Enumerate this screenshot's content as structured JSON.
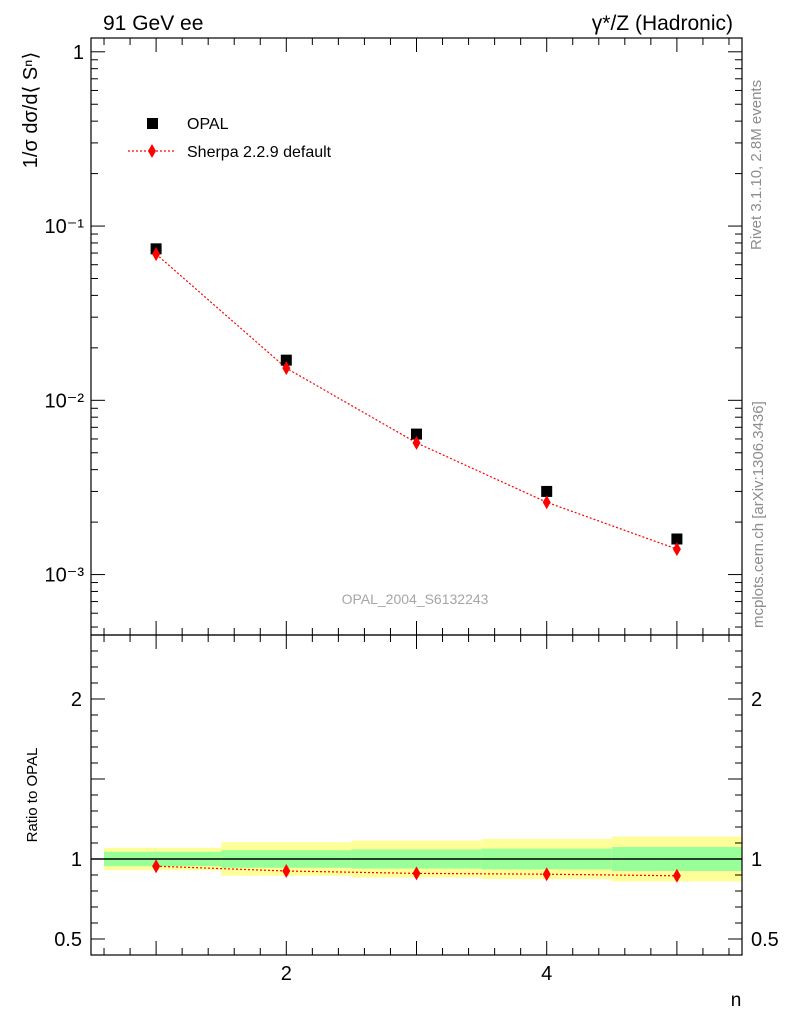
{
  "header": {
    "left": "91 GeV ee",
    "right": "γ*/Z (Hadronic)"
  },
  "side_text": {
    "rivet": "Rivet 3.1.10,  2.8M events",
    "mcplots": "mcplots.cern.ch [arXiv:1306.3436]"
  },
  "watermark": "OPAL_2004_S6132243",
  "colors": {
    "data": "#000000",
    "mc": "#ff0000",
    "band_inner": "#99ff99",
    "band_outer": "#ffff99"
  },
  "chart_data": [
    {
      "type": "scatter",
      "panel": "main",
      "ylabel": "1/σ dσ/d⟨ Sⁿ⟩",
      "yscale": "log",
      "xlim": [
        0.5,
        5.5
      ],
      "ylim": [
        0.00045,
        1.2
      ],
      "y_ticks": [
        {
          "value": 0.001,
          "label": "10⁻³"
        },
        {
          "value": 0.01,
          "label": "10⁻²"
        },
        {
          "value": 0.1,
          "label": "10⁻¹"
        },
        {
          "value": 1,
          "label": "1"
        }
      ],
      "legend_position": "top-left",
      "series": [
        {
          "name": "OPAL",
          "marker": "square",
          "x": [
            1,
            2,
            3,
            4,
            5
          ],
          "y": [
            0.074,
            0.017,
            0.0064,
            0.003,
            0.0016
          ]
        },
        {
          "name": "Sherpa 2.2.9 default",
          "marker": "diamond",
          "line": "dotted",
          "x": [
            1,
            2,
            3,
            4,
            5
          ],
          "y": [
            0.069,
            0.0153,
            0.0057,
            0.0026,
            0.0014
          ]
        }
      ]
    },
    {
      "type": "line",
      "panel": "ratio",
      "ylabel": "Ratio to OPAL",
      "xlabel": "n",
      "ylim": [
        0.4,
        2.4
      ],
      "y_ticks": [
        {
          "value": 0.5,
          "label": "0.5"
        },
        {
          "value": 1,
          "label": "1"
        },
        {
          "value": 2,
          "label": "2"
        }
      ],
      "x_ticks": [
        {
          "value": 2,
          "label": "2"
        },
        {
          "value": 4,
          "label": "4"
        }
      ],
      "bands": {
        "x_edges": [
          0.6,
          1.5,
          2.5,
          3.5,
          4.5,
          5.5
        ],
        "inner": [
          0.045,
          0.055,
          0.06,
          0.065,
          0.075
        ],
        "outer": [
          0.07,
          0.105,
          0.115,
          0.125,
          0.14
        ]
      },
      "series": [
        {
          "name": "Sherpa 2.2.9 default",
          "x": [
            1,
            2,
            3,
            4,
            5
          ],
          "y": [
            0.955,
            0.925,
            0.91,
            0.905,
            0.895
          ]
        }
      ]
    }
  ]
}
